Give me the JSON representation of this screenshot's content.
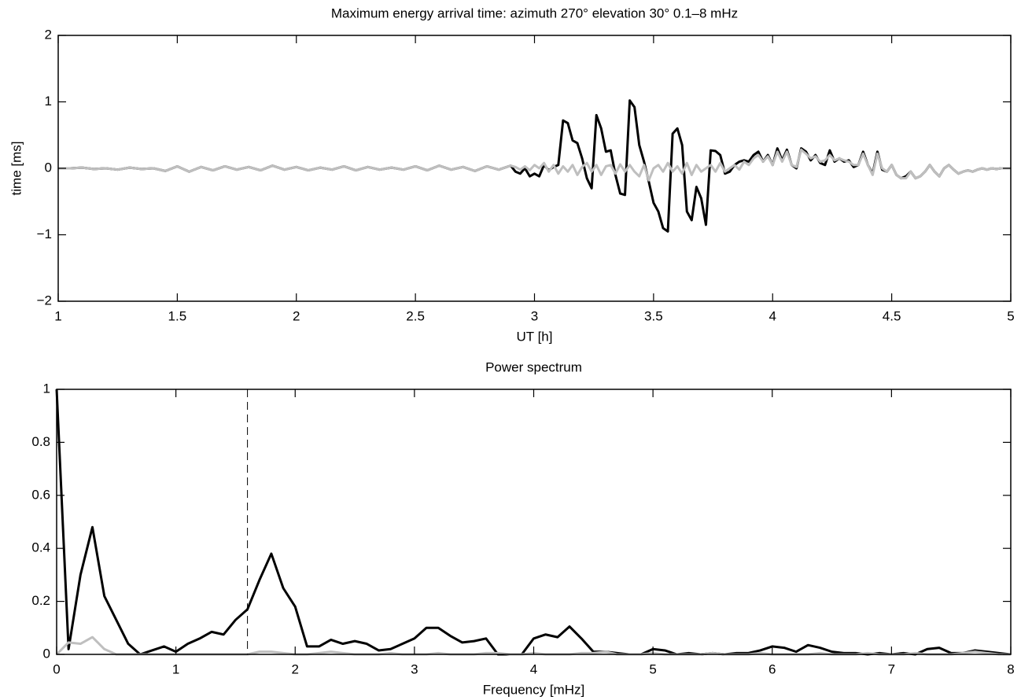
{
  "chart_data": [
    {
      "type": "line",
      "title": "Maximum energy arrival time: azimuth 270°  elevation 30°    0.1–8 mHz",
      "xlabel": "UT [h]",
      "ylabel": "time [ms]",
      "xlim": [
        1,
        5
      ],
      "ylim": [
        -2,
        2
      ],
      "xticks": [
        1,
        1.5,
        2,
        2.5,
        3,
        3.5,
        4,
        4.5,
        5
      ],
      "yticks": [
        {
          "value": -2,
          "label": "−2"
        },
        {
          "value": -1,
          "label": "−1"
        },
        0,
        1,
        2
      ],
      "x": [
        1.0,
        1.05,
        1.1,
        1.15,
        1.2,
        1.25,
        1.3,
        1.35,
        1.4,
        1.45,
        1.5,
        1.55,
        1.6,
        1.65,
        1.7,
        1.75,
        1.8,
        1.85,
        1.9,
        1.95,
        2.0,
        2.05,
        2.1,
        2.15,
        2.2,
        2.25,
        2.3,
        2.35,
        2.4,
        2.45,
        2.5,
        2.55,
        2.6,
        2.65,
        2.7,
        2.75,
        2.8,
        2.85,
        2.9,
        2.92,
        2.94,
        2.96,
        2.98,
        3.0,
        3.02,
        3.04,
        3.06,
        3.08,
        3.1,
        3.12,
        3.14,
        3.16,
        3.18,
        3.2,
        3.22,
        3.24,
        3.26,
        3.28,
        3.3,
        3.32,
        3.34,
        3.36,
        3.38,
        3.4,
        3.42,
        3.44,
        3.46,
        3.48,
        3.5,
        3.52,
        3.54,
        3.56,
        3.58,
        3.6,
        3.62,
        3.64,
        3.66,
        3.68,
        3.7,
        3.72,
        3.74,
        3.76,
        3.78,
        3.8,
        3.82,
        3.84,
        3.86,
        3.88,
        3.9,
        3.92,
        3.94,
        3.96,
        3.98,
        4.0,
        4.02,
        4.04,
        4.06,
        4.08,
        4.1,
        4.12,
        4.14,
        4.16,
        4.18,
        4.2,
        4.22,
        4.24,
        4.26,
        4.28,
        4.3,
        4.32,
        4.34,
        4.36,
        4.38,
        4.4,
        4.42,
        4.44,
        4.46,
        4.48,
        4.5,
        4.52,
        4.54,
        4.56,
        4.58,
        4.6,
        4.62,
        4.64,
        4.66,
        4.68,
        4.7,
        4.72,
        4.74,
        4.76,
        4.78,
        4.8,
        4.82,
        4.84,
        4.86,
        4.88,
        4.9,
        4.92,
        4.94,
        4.96,
        4.98,
        5.0
      ],
      "series": [
        {
          "name": "black",
          "color": "#000000",
          "values": [
            0,
            0,
            0.01,
            -0.01,
            0,
            -0.02,
            0.01,
            -0.01,
            0.0,
            -0.04,
            0.03,
            -0.05,
            0.02,
            -0.03,
            0.03,
            -0.02,
            0.02,
            -0.03,
            0.04,
            -0.02,
            0.02,
            -0.03,
            0.01,
            -0.02,
            0.03,
            -0.03,
            0.02,
            -0.02,
            0.01,
            -0.02,
            0.03,
            -0.03,
            0.04,
            -0.02,
            0.02,
            -0.04,
            0.03,
            -0.02,
            0.04,
            -0.05,
            -0.08,
            0.0,
            -0.12,
            -0.08,
            -0.12,
            0.05,
            -0.03,
            0.02,
            0.05,
            0.72,
            0.68,
            0.42,
            0.38,
            0.15,
            -0.15,
            -0.3,
            0.8,
            0.6,
            0.25,
            0.27,
            -0.1,
            -0.38,
            -0.4,
            1.02,
            0.92,
            0.35,
            0.1,
            -0.2,
            -0.52,
            -0.65,
            -0.9,
            -0.95,
            0.52,
            0.6,
            0.35,
            -0.65,
            -0.78,
            -0.28,
            -0.45,
            -0.85,
            0.27,
            0.26,
            0.2,
            -0.08,
            -0.05,
            0.05,
            0.1,
            0.12,
            0.1,
            0.2,
            0.25,
            0.1,
            0.2,
            0.05,
            0.3,
            0.12,
            0.28,
            0.05,
            0.0,
            0.3,
            0.25,
            0.12,
            0.2,
            0.08,
            0.05,
            0.27,
            0.1,
            0.15,
            0.1,
            0.12,
            0.02,
            0.05,
            0.25,
            0.05,
            -0.08,
            0.25,
            -0.02,
            -0.05,
            0.05,
            -0.1,
            -0.15,
            -0.12,
            -0.05,
            -0.15,
            -0.12,
            -0.05,
            0.05,
            -0.05,
            -0.12,
            0.0,
            0.05,
            -0.02,
            -0.08,
            -0.05,
            -0.03,
            -0.05,
            -0.02,
            0.0,
            -0.02,
            0.0,
            -0.01,
            0.0,
            0.0,
            0.0
          ]
        },
        {
          "name": "gray",
          "color": "#bfbfbf",
          "values": [
            0,
            0,
            0.01,
            -0.01,
            0,
            -0.02,
            0.01,
            -0.01,
            0.0,
            -0.04,
            0.03,
            -0.05,
            0.02,
            -0.03,
            0.03,
            -0.02,
            0.02,
            -0.03,
            0.04,
            -0.02,
            0.02,
            -0.03,
            0.01,
            -0.02,
            0.03,
            -0.03,
            0.02,
            -0.02,
            0.01,
            -0.02,
            0.03,
            -0.03,
            0.04,
            -0.02,
            0.02,
            -0.04,
            0.03,
            -0.02,
            0.04,
            0.02,
            -0.02,
            0.03,
            -0.03,
            0.05,
            0.0,
            0.08,
            -0.05,
            0.05,
            -0.08,
            0.03,
            -0.05,
            0.05,
            -0.1,
            0.02,
            0.08,
            -0.05,
            0.05,
            -0.1,
            0.03,
            0.05,
            -0.08,
            0.06,
            -0.05,
            0.05,
            -0.05,
            -0.12,
            0.05,
            -0.18,
            0.0,
            0.05,
            -0.05,
            0.08,
            -0.05,
            0.03,
            -0.08,
            0.08,
            -0.1,
            0.05,
            -0.05,
            0.0,
            0.05,
            -0.05,
            0.08,
            -0.05,
            0.0,
            0.05,
            -0.02,
            0.1,
            0.05,
            0.15,
            0.2,
            0.1,
            0.18,
            0.05,
            0.25,
            0.1,
            0.25,
            0.05,
            0.02,
            0.28,
            0.22,
            0.15,
            0.18,
            0.1,
            0.12,
            0.2,
            0.12,
            0.15,
            0.12,
            0.1,
            0.05,
            0.05,
            0.22,
            0.05,
            -0.1,
            0.22,
            0.0,
            -0.05,
            0.05,
            -0.1,
            -0.15,
            -0.15,
            -0.05,
            -0.15,
            -0.12,
            -0.05,
            0.05,
            -0.05,
            -0.12,
            0.0,
            0.05,
            -0.02,
            -0.08,
            -0.05,
            -0.03,
            -0.05,
            -0.02,
            0.0,
            -0.02,
            0.0,
            -0.01,
            0.0,
            0.0,
            0.0
          ]
        }
      ]
    },
    {
      "type": "line",
      "title": "Power spectrum",
      "xlabel": "Frequency [mHz]",
      "xlim": [
        0,
        8
      ],
      "ylim": [
        0,
        1
      ],
      "xticks": [
        0,
        1,
        2,
        3,
        4,
        5,
        6,
        7,
        8
      ],
      "yticks": [
        0,
        0.2,
        0.4,
        0.6,
        0.8,
        1
      ],
      "vline": 1.6,
      "x": [
        0,
        0.1,
        0.2,
        0.3,
        0.4,
        0.5,
        0.6,
        0.7,
        0.8,
        0.9,
        1,
        1.1,
        1.2,
        1.3,
        1.4,
        1.5,
        1.6,
        1.7,
        1.8,
        1.9,
        2,
        2.1,
        2.2,
        2.3,
        2.4,
        2.5,
        2.6,
        2.7,
        2.8,
        2.9,
        3,
        3.1,
        3.2,
        3.3,
        3.4,
        3.5,
        3.6,
        3.7,
        3.8,
        3.9,
        4,
        4.1,
        4.2,
        4.3,
        4.4,
        4.5,
        4.6,
        4.7,
        4.8,
        4.9,
        5,
        5.1,
        5.2,
        5.3,
        5.4,
        5.5,
        5.6,
        5.7,
        5.8,
        5.9,
        6,
        6.1,
        6.2,
        6.3,
        6.4,
        6.5,
        6.6,
        6.7,
        6.8,
        6.9,
        7,
        7.1,
        7.2,
        7.3,
        7.4,
        7.5,
        7.6,
        7.7,
        7.8,
        7.9,
        8
      ],
      "series": [
        {
          "name": "black",
          "color": "#000000",
          "values": [
            1,
            0.02,
            0.3,
            0.48,
            0.22,
            0.13,
            0.04,
            0.0,
            0.015,
            0.03,
            0.01,
            0.04,
            0.06,
            0.085,
            0.075,
            0.13,
            0.17,
            0.28,
            0.38,
            0.25,
            0.18,
            0.03,
            0.03,
            0.055,
            0.04,
            0.05,
            0.04,
            0.015,
            0.02,
            0.04,
            0.06,
            0.1,
            0.1,
            0.07,
            0.045,
            0.05,
            0.06,
            0.0,
            0.0,
            0.0,
            0.06,
            0.075,
            0.065,
            0.105,
            0.06,
            0.01,
            0.01,
            0.005,
            0.0,
            0.0,
            0.02,
            0.015,
            0.0,
            0.005,
            0.0,
            0.005,
            0.0,
            0.005,
            0.005,
            0.015,
            0.03,
            0.025,
            0.01,
            0.035,
            0.025,
            0.01,
            0.005,
            0.005,
            0.0,
            0.005,
            0.0,
            0.005,
            0.0,
            0.02,
            0.025,
            0.005,
            0.005,
            0.015,
            0.01,
            0.005,
            0.0
          ]
        },
        {
          "name": "gray",
          "color": "#bfbfbf",
          "values": [
            0,
            0.045,
            0.04,
            0.065,
            0.02,
            0.0,
            0.0,
            0.0,
            0.0,
            0.0,
            0.0,
            0.0,
            0.0,
            0.0,
            0.0,
            0.0,
            0.0,
            0.01,
            0.01,
            0.005,
            0.0,
            0.0,
            0.005,
            0.01,
            0.005,
            0.0,
            0.0,
            0.0,
            0.005,
            0.0,
            0.0,
            0.0,
            0.005,
            0.0,
            0.0,
            0.0,
            0.005,
            0.005,
            0.0,
            0.0,
            0.005,
            0.0,
            0.0,
            0.0,
            0.005,
            0.005,
            0.01,
            0.0,
            0.0,
            0.0,
            0.005,
            0.0,
            0.0,
            0.0,
            0.0,
            0.005,
            0.0,
            0.0,
            0.0,
            0.005,
            0.0,
            0.0,
            0.0,
            0.0,
            0.005,
            0.0,
            0.0,
            0.0,
            0.005,
            0.0,
            0.0,
            0.0,
            0.005,
            0.0,
            0.0,
            0.0,
            0.005,
            0.01,
            0.005,
            0.0,
            0.0
          ]
        }
      ]
    }
  ]
}
